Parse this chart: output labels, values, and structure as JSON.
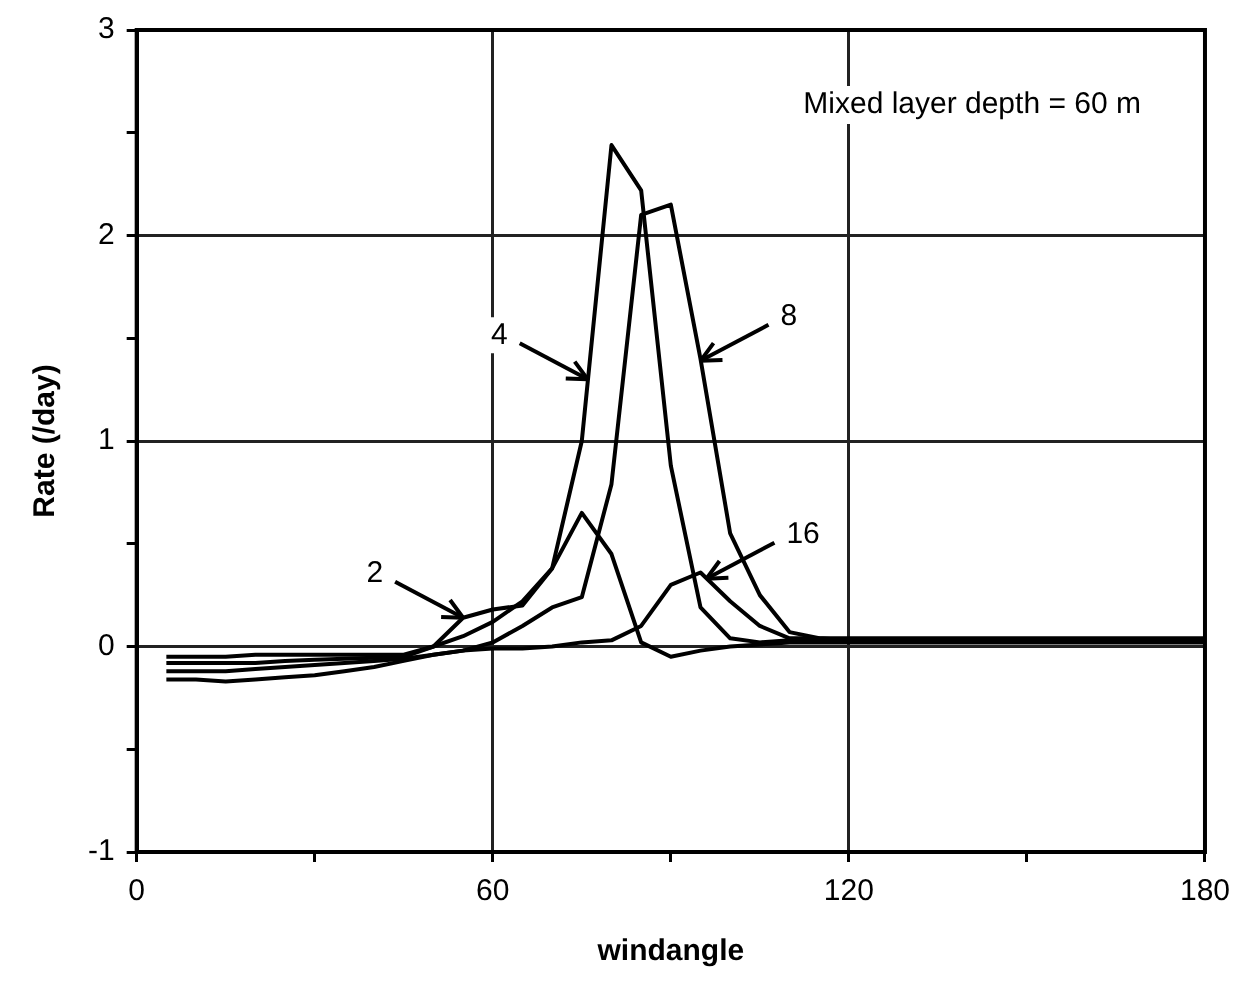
{
  "chart_data": {
    "type": "line",
    "xlabel": "windangle",
    "ylabel": "Rate (/day)",
    "x": [
      5,
      10,
      15,
      20,
      25,
      30,
      35,
      40,
      45,
      50,
      55,
      60,
      65,
      70,
      75,
      80,
      85,
      90,
      95,
      100,
      105,
      110,
      115,
      120,
      130,
      140,
      150,
      160,
      170,
      180
    ],
    "series": [
      {
        "color": "#000000",
        "values": [
          -0.05,
          -0.05,
          -0.05,
          -0.04,
          -0.04,
          -0.04,
          -0.04,
          -0.04,
          -0.04,
          0.0,
          0.14,
          0.18,
          0.2,
          0.38,
          0.65,
          0.45,
          0.02,
          -0.05,
          -0.02,
          0.0,
          0.01,
          0.02,
          0.02,
          0.02,
          0.02,
          0.02,
          0.02,
          0.02,
          0.02,
          0.02
        ]
      },
      {
        "color": "#000000",
        "values": [
          -0.08,
          -0.08,
          -0.08,
          -0.08,
          -0.07,
          -0.065,
          -0.06,
          -0.055,
          -0.05,
          0.0,
          0.05,
          0.12,
          0.22,
          0.38,
          1.0,
          2.44,
          2.22,
          0.88,
          0.19,
          0.04,
          0.02,
          0.03,
          0.03,
          0.03,
          0.03,
          0.03,
          0.03,
          0.03,
          0.03,
          0.03
        ]
      },
      {
        "color": "#000000",
        "values": [
          -0.12,
          -0.12,
          -0.12,
          -0.11,
          -0.1,
          -0.09,
          -0.08,
          -0.07,
          -0.06,
          -0.04,
          -0.02,
          0.02,
          0.1,
          0.19,
          0.24,
          0.79,
          2.1,
          2.15,
          1.4,
          0.55,
          0.25,
          0.07,
          0.04,
          0.03,
          0.03,
          0.03,
          0.03,
          0.03,
          0.03,
          0.03
        ]
      },
      {
        "color": "#000000",
        "values": [
          -0.16,
          -0.16,
          -0.17,
          -0.16,
          -0.15,
          -0.14,
          -0.12,
          -0.1,
          -0.07,
          -0.04,
          -0.02,
          -0.01,
          -0.01,
          0.0,
          0.02,
          0.03,
          0.1,
          0.3,
          0.36,
          0.22,
          0.1,
          0.04,
          0.04,
          0.04,
          0.04,
          0.04,
          0.04,
          0.04,
          0.04,
          0.04
        ]
      }
    ],
    "xlim": [
      0,
      180
    ],
    "xticks": [
      0,
      {
        "value": 30,
        "label": null
      },
      60,
      {
        "value": 90,
        "label": null
      },
      120,
      {
        "value": 150,
        "label": null
      },
      180
    ],
    "ylim": [
      -1,
      3
    ],
    "yticks": [
      -1,
      {
        "value": -0.5,
        "label": null
      },
      0,
      {
        "value": 0.5,
        "label": null
      },
      1,
      {
        "value": 1.5,
        "label": null
      },
      2,
      {
        "value": 2.5,
        "label": null
      },
      3
    ],
    "grid": true,
    "legend": false,
    "marker": "none",
    "line_style": "solid",
    "annotations": [
      "Mixed layer depth = 60 m",
      {
        "text": "2",
        "x": 55,
        "y": 0.14
      },
      {
        "text": "4",
        "x": 76,
        "y": 1.3
      },
      {
        "text": "8",
        "x": 95,
        "y": 1.39
      },
      {
        "text": "16",
        "x": 96,
        "y": 0.33
      }
    ]
  }
}
